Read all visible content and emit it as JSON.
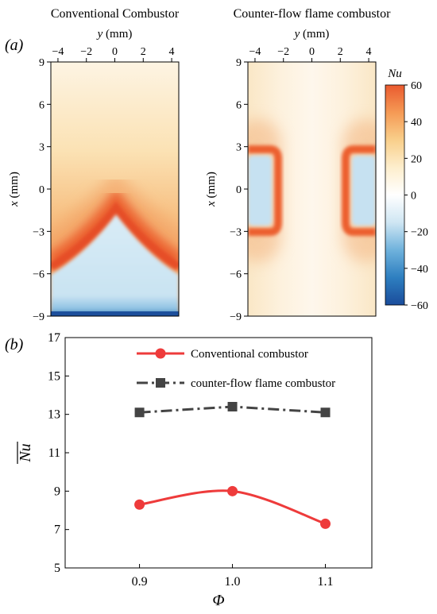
{
  "panel_labels": [
    "(a)",
    "(b)"
  ],
  "chart_data": [
    {
      "type": "heatmap",
      "title": "Conventional Combustor",
      "xlabel_var": "y",
      "xlabel_unit": " (mm)",
      "ylabel_var": "x",
      "ylabel_unit": " (mm)",
      "xlim": [
        -4.5,
        4.5
      ],
      "ylim": [
        -9,
        9
      ],
      "xticks": [
        -4,
        -2,
        0,
        2,
        4
      ],
      "xtick_labels": [
        "−4",
        "−2",
        "0",
        "2",
        "4"
      ],
      "yticks": [
        9,
        6,
        3,
        0,
        -3,
        -6,
        -9
      ],
      "ytick_labels": [
        "9",
        "6",
        "3",
        "0",
        "−3",
        "−6",
        "−9"
      ],
      "field": "Nu"
    },
    {
      "type": "heatmap",
      "title": "Counter-flow flame combustor",
      "xlabel_var": "y",
      "xlabel_unit": " (mm)",
      "ylabel_var": "x",
      "ylabel_unit": " (mm)",
      "xlim": [
        -4.5,
        4.5
      ],
      "ylim": [
        -9,
        9
      ],
      "xticks": [
        -4,
        -2,
        0,
        2,
        4
      ],
      "xtick_labels": [
        "−4",
        "−2",
        "0",
        "2",
        "4"
      ],
      "yticks": [
        9,
        6,
        3,
        0,
        -3,
        -6,
        -9
      ],
      "ytick_labels": [
        "9",
        "6",
        "3",
        "0",
        "−3",
        "−6",
        "−9"
      ],
      "field": "Nu",
      "colorbar": {
        "label": "Nu",
        "range": [
          -60,
          60
        ],
        "ticks": [
          60,
          40,
          20,
          0,
          -20,
          -40,
          -60
        ],
        "tick_labels": [
          "60",
          "40",
          "20",
          "0",
          "−20",
          "−40",
          "−60"
        ],
        "colors": [
          "#1a4c9b",
          "#2e7fc0",
          "#6fb2dc",
          "#cfe6f3",
          "#ffffff",
          "#fdeecd",
          "#f9cf8b",
          "#f59a55",
          "#ea5a2f"
        ]
      }
    },
    {
      "type": "line",
      "xlabel": "Φ",
      "ylabel": "Nu",
      "x": [
        0.9,
        1.0,
        1.1
      ],
      "xticks": [
        0.9,
        1.0,
        1.1
      ],
      "xtick_labels": [
        "0.9",
        "1.0",
        "1.1"
      ],
      "xlim": [
        0.82,
        1.15
      ],
      "ylim": [
        5,
        17
      ],
      "yticks": [
        5,
        7,
        9,
        11,
        13,
        15,
        17
      ],
      "grid": false,
      "legend_position": "top-center",
      "series": [
        {
          "name": "Conventional combustor",
          "values": [
            8.3,
            9.0,
            7.3
          ],
          "color": "#ee3b3b",
          "marker": "circle",
          "line": "solid",
          "smooth": true
        },
        {
          "name": "counter-flow flame combustor",
          "values": [
            13.1,
            13.4,
            13.1
          ],
          "color": "#444444",
          "marker": "square",
          "line": "dashdot",
          "smooth": false
        }
      ]
    }
  ]
}
